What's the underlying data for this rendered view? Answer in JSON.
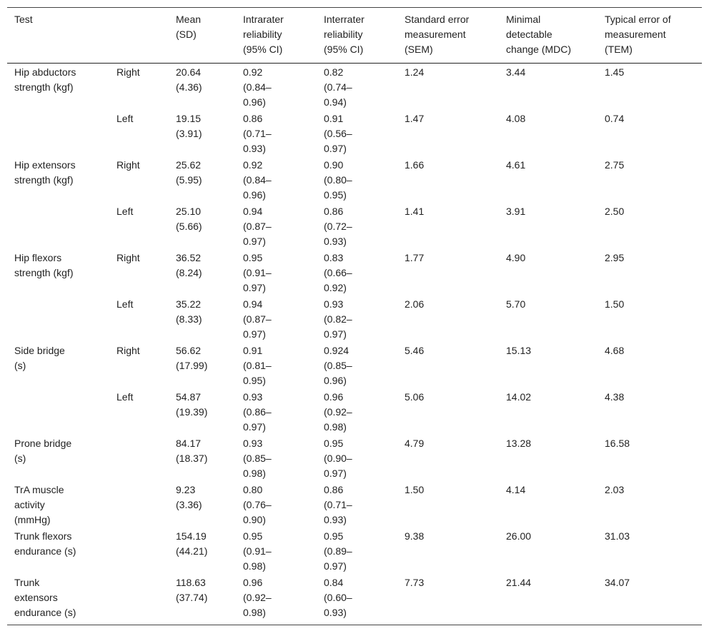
{
  "table": {
    "header": [
      "Test",
      "Mean\n(SD)",
      "Intrarater\nreliability\n(95% CI)",
      "Interrater\nreliability\n(95% CI)",
      "Standard error\nmeasurement\n(SEM)",
      "Minimal\ndetectable\nchange (MDC)",
      "Typical error of\nmeasurement\n(TEM)"
    ],
    "rows": [
      {
        "test": "Hip abductors\nstrength (kgf)",
        "side": "Right",
        "cells": [
          "20.64\n(4.36)",
          "0.92\n(0.84–\n0.96)",
          "0.82\n(0.74–\n0.94)",
          "1.24",
          "3.44",
          "1.45"
        ]
      },
      {
        "side": "Left",
        "cells": [
          "19.15\n(3.91)",
          "0.86\n(0.71–\n0.93)",
          "0.91\n(0.56–\n0.97)",
          "1.47",
          "4.08",
          "0.74"
        ]
      },
      {
        "test": "Hip extensors\nstrength (kgf)",
        "side": "Right",
        "cells": [
          "25.62\n(5.95)",
          "0.92\n(0.84–\n0.96)",
          "0.90\n(0.80–\n0.95)",
          "1.66",
          "4.61",
          "2.75"
        ]
      },
      {
        "side": "Left",
        "cells": [
          "25.10\n(5.66)",
          "0.94\n(0.87–\n0.97)",
          "0.86\n(0.72–\n0.93)",
          "1.41",
          "3.91",
          "2.50"
        ]
      },
      {
        "test": "Hip flexors\nstrength (kgf)",
        "side": "Right",
        "cells": [
          "36.52\n(8.24)",
          "0.95\n(0.91–\n0.97)",
          "0.83\n(0.66–\n0.92)",
          "1.77",
          "4.90",
          "2.95"
        ]
      },
      {
        "side": "Left",
        "cells": [
          "35.22\n(8.33)",
          "0.94\n(0.87–\n0.97)",
          "0.93\n(0.82–\n0.97)",
          "2.06",
          "5.70",
          "1.50"
        ]
      },
      {
        "test": "Side bridge\n(s)",
        "side": "Right",
        "cells": [
          "56.62\n(17.99)",
          "0.91\n(0.81–\n0.95)",
          "0.924\n(0.85–\n0.96)",
          "5.46",
          "15.13",
          "4.68"
        ]
      },
      {
        "side": "Left",
        "cells": [
          "54.87\n(19.39)",
          "0.93\n(0.86–\n0.97)",
          "0.96\n(0.92–\n0.98)",
          "5.06",
          "14.02",
          "4.38"
        ]
      },
      {
        "test": "Prone bridge\n(s)",
        "cells": [
          "84.17\n(18.37)",
          "0.93\n(0.85–\n0.98)",
          "0.95\n(0.90–\n0.97)",
          "4.79",
          "13.28",
          "16.58"
        ]
      },
      {
        "test": "TrA muscle\nactivity\n(mmHg)",
        "cells": [
          "9.23\n(3.36)",
          "0.80\n(0.76–\n0.90)",
          "0.86\n(0.71–\n0.93)",
          "1.50",
          "4.14",
          "2.03"
        ]
      },
      {
        "test": "Trunk flexors\nendurance (s)",
        "cells": [
          "154.19\n(44.21)",
          "0.95\n(0.91–\n0.98)",
          "0.95\n(0.89–\n0.97)",
          "9.38",
          "26.00",
          "31.03"
        ]
      },
      {
        "test": "Trunk\nextensors\nendurance (s)",
        "cells": [
          "118.63\n(37.74)",
          "0.96\n(0.92–\n0.98)",
          "0.84\n(0.60–\n0.93)",
          "7.73",
          "21.44",
          "34.07"
        ]
      }
    ]
  }
}
